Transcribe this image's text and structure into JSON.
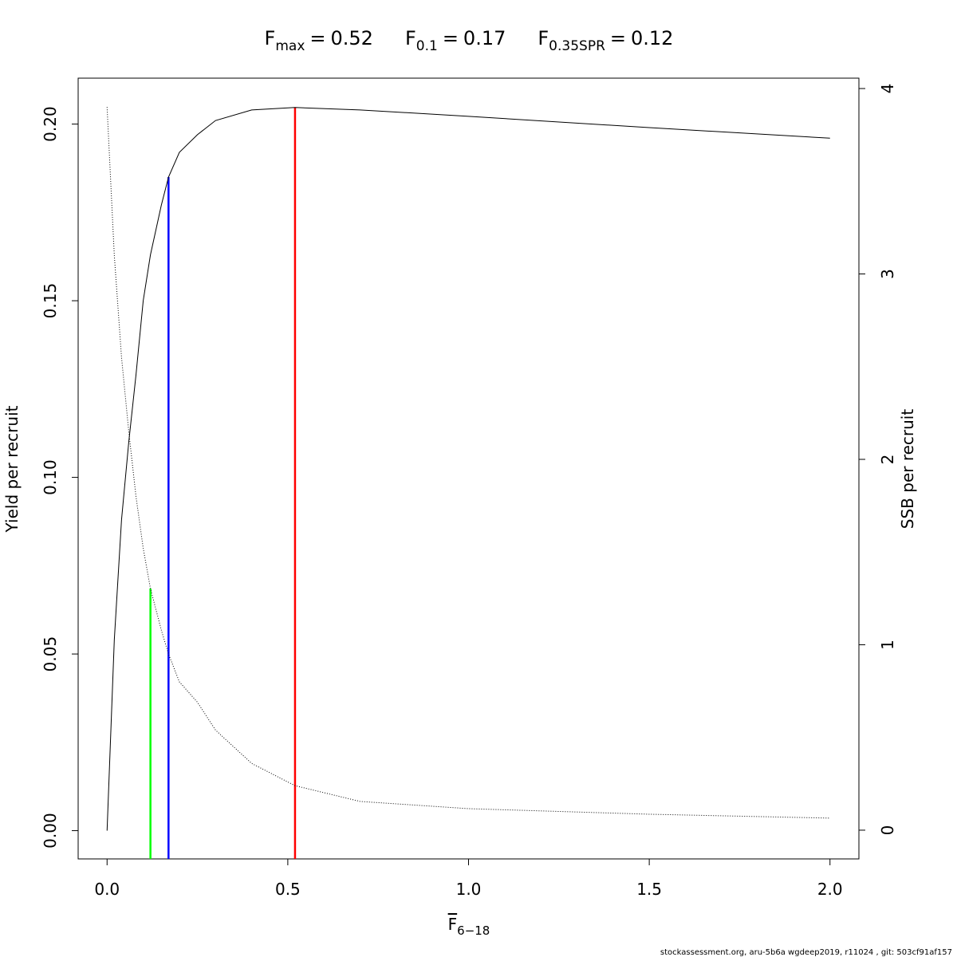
{
  "chart_data": {
    "type": "line",
    "title": [
      {
        "symbol": "F",
        "subscript": "max",
        "relation": "=",
        "value": 0.52
      },
      {
        "symbol": "F",
        "subscript": "0.1",
        "relation": "=",
        "value": 0.17
      },
      {
        "symbol": "F",
        "subscript": "0.35SPR",
        "relation": "=",
        "value": 0.12
      }
    ],
    "x_label": {
      "symbol": "F",
      "subscript": "6−18"
    },
    "y_label": "Yield per recruit",
    "y2_label": "SSB per recruit",
    "footer": "stockassessment.org, aru-5b6a  wgdeep2019, r11024 , git: 503cf91af157",
    "x": [
      0,
      0.02,
      0.04,
      0.06,
      0.08,
      0.1,
      0.12,
      0.15,
      0.17,
      0.2,
      0.25,
      0.3,
      0.4,
      0.52,
      0.7,
      1.0,
      1.5,
      2.0
    ],
    "series": [
      {
        "color": "#000000",
        "style": "solid",
        "axis": "y",
        "values": [
          0,
          0.054,
          0.088,
          0.11,
          0.129,
          0.15,
          0.163,
          0.177,
          0.185,
          0.192,
          0.197,
          0.201,
          0.204,
          0.2047,
          0.204,
          0.2022,
          0.199,
          0.196
        ]
      },
      {
        "color": "#000000",
        "style": "dotted",
        "axis": "y2",
        "values": [
          3.9,
          3.1,
          2.55,
          2.15,
          1.8,
          1.52,
          1.303,
          1.08,
          0.95,
          0.8,
          0.69,
          0.54,
          0.36,
          0.24,
          0.155,
          0.116,
          0.086,
          0.065
        ]
      }
    ],
    "reference_lines": [
      {
        "title_index": 0,
        "top": 0.2047,
        "axis": "y",
        "color": "#ff0000"
      },
      {
        "title_index": 1,
        "top": 0.185,
        "axis": "y",
        "color": "#0000ff"
      },
      {
        "title_index": 2,
        "top": 1.303,
        "axis": "y2",
        "color": "#00ff00"
      }
    ],
    "xlim": [
      -0.08,
      2.08
    ],
    "xticks": [
      {
        "value": 0,
        "label": "0.0"
      },
      0.5,
      {
        "value": 1,
        "label": "1.0"
      },
      1.5,
      {
        "value": 2,
        "label": "2.0"
      }
    ],
    "ylim": [
      -0.008,
      0.213
    ],
    "yticks": [
      {
        "value": 0,
        "label": "0.00"
      },
      0.05,
      {
        "value": 0.1,
        "label": "0.10"
      },
      0.15,
      {
        "value": 0.2,
        "label": "0.20"
      }
    ],
    "y2lim": [
      -0.155,
      4.056
    ],
    "y2ticks": [
      0,
      1,
      2,
      3,
      4
    ]
  }
}
